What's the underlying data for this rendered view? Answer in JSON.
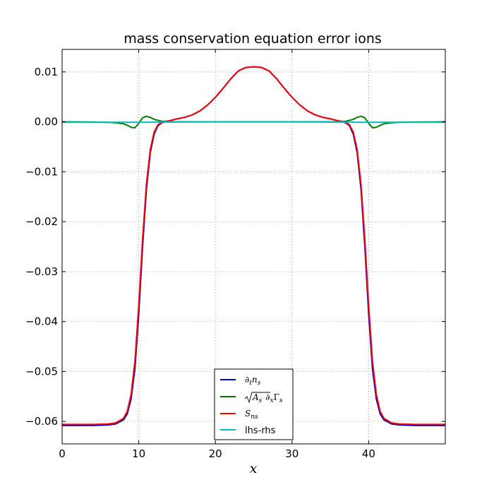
{
  "chart_data": {
    "type": "line",
    "title": "mass conservation equation error ions",
    "xlabel": "x",
    "ylabel": "",
    "xlim": [
      0,
      50
    ],
    "ylim": [
      -0.0645,
      0.0145
    ],
    "grid": true,
    "legend_position": "lower-center",
    "x_ticks": [
      0,
      10,
      20,
      30,
      40
    ],
    "x_tick_labels": [
      "0",
      "10",
      "20",
      "30",
      "40"
    ],
    "y_ticks": [
      0.01,
      0.0,
      -0.01,
      -0.02,
      -0.03,
      -0.04,
      -0.05,
      -0.06
    ],
    "y_tick_labels": [
      "0.01",
      "0.00",
      "−0.01",
      "−0.02",
      "−0.03",
      "−0.04",
      "−0.05",
      "−0.06"
    ],
    "series": [
      {
        "name": "∂tns",
        "color": "#0000cc",
        "x": [
          0,
          2,
          4,
          6,
          7,
          8,
          8.5,
          9,
          9.5,
          10,
          10.5,
          11,
          11.5,
          12,
          12.5,
          13,
          13.5,
          14,
          15,
          16,
          17,
          18,
          19,
          20,
          21,
          22,
          23,
          24,
          25,
          26,
          27,
          28,
          29,
          30,
          31,
          32,
          33,
          34,
          35,
          36,
          36.5,
          37,
          37.5,
          38,
          38.5,
          39,
          39.5,
          40,
          40.5,
          41,
          41.5,
          42,
          43,
          44,
          46,
          48,
          50
        ],
        "y": [
          -0.0608,
          -0.0608,
          -0.0608,
          -0.0607,
          -0.0605,
          -0.0597,
          -0.0585,
          -0.0555,
          -0.0495,
          -0.0385,
          -0.025,
          -0.0135,
          -0.0062,
          -0.0025,
          -0.0008,
          -0.0002,
          0.0,
          0.0002,
          0.0006,
          0.0009,
          0.0014,
          0.0022,
          0.0034,
          0.0049,
          0.0067,
          0.0086,
          0.0102,
          0.0109,
          0.011,
          0.0109,
          0.0102,
          0.0086,
          0.0067,
          0.0049,
          0.0034,
          0.0022,
          0.0014,
          0.0009,
          0.0006,
          0.0002,
          0.0,
          -0.0002,
          -0.0008,
          -0.0025,
          -0.0062,
          -0.0135,
          -0.025,
          -0.0385,
          -0.0495,
          -0.0555,
          -0.0585,
          -0.0597,
          -0.0605,
          -0.0607,
          -0.0608,
          -0.0608,
          -0.0608
        ]
      },
      {
        "name": "√As∂xΓs",
        "color": "#007f00",
        "x": [
          0,
          4,
          6,
          7,
          8,
          8.5,
          9,
          9.5,
          10,
          10.5,
          11,
          11.5,
          12,
          12.5,
          13,
          14,
          20,
          25,
          30,
          36,
          37,
          37.5,
          38,
          38.5,
          39,
          39.5,
          40,
          40.5,
          41,
          41.5,
          42,
          43,
          44,
          46,
          50
        ],
        "y": [
          0.0,
          -5e-05,
          -0.0001,
          -0.0002,
          -0.0004,
          -0.0007,
          -0.0011,
          -0.0012,
          -0.0003,
          0.0008,
          0.0011,
          0.0009,
          0.0005,
          0.0003,
          0.0001,
          0.0,
          0.0,
          0.0,
          0.0,
          0.0,
          0.0001,
          0.0003,
          0.0005,
          0.0009,
          0.0011,
          0.0008,
          -0.0003,
          -0.0012,
          -0.0011,
          -0.0007,
          -0.0004,
          -0.0002,
          -0.0001,
          -5e-05,
          0.0
        ]
      },
      {
        "name": "Sns",
        "color": "#ff0000",
        "x": [
          0,
          2,
          4,
          6,
          7,
          8,
          8.5,
          9,
          9.5,
          10,
          10.5,
          11,
          11.5,
          12,
          12.5,
          13,
          13.5,
          14,
          15,
          16,
          17,
          18,
          19,
          20,
          21,
          22,
          23,
          24,
          25,
          26,
          27,
          28,
          29,
          30,
          31,
          32,
          33,
          34,
          35,
          36,
          36.5,
          37,
          37.5,
          38,
          38.5,
          39,
          39.5,
          40,
          40.5,
          41,
          41.5,
          42,
          43,
          44,
          46,
          48,
          50
        ],
        "y": [
          -0.0606,
          -0.0606,
          -0.0606,
          -0.0605,
          -0.0603,
          -0.0594,
          -0.058,
          -0.0546,
          -0.048,
          -0.0368,
          -0.0235,
          -0.0125,
          -0.0056,
          -0.0021,
          -0.0006,
          -0.0001,
          0.0001,
          0.0002,
          0.0006,
          0.0009,
          0.0014,
          0.0022,
          0.0034,
          0.0049,
          0.0067,
          0.0086,
          0.0102,
          0.0109,
          0.011,
          0.0109,
          0.0102,
          0.0086,
          0.0067,
          0.0049,
          0.0034,
          0.0022,
          0.0014,
          0.0009,
          0.0006,
          0.0002,
          0.0001,
          -0.0001,
          -0.0006,
          -0.0021,
          -0.0056,
          -0.0125,
          -0.0235,
          -0.0368,
          -0.048,
          -0.0546,
          -0.058,
          -0.0594,
          -0.0603,
          -0.0605,
          -0.0606,
          -0.0606,
          -0.0606
        ]
      },
      {
        "name": "lhs-rhs",
        "color": "#00bfbf",
        "x": [
          0,
          10,
          20,
          25,
          30,
          40,
          50
        ],
        "y": [
          -0.0001,
          -0.0001,
          0.0,
          0.0,
          0.0,
          -0.0001,
          -0.0001
        ]
      }
    ]
  }
}
